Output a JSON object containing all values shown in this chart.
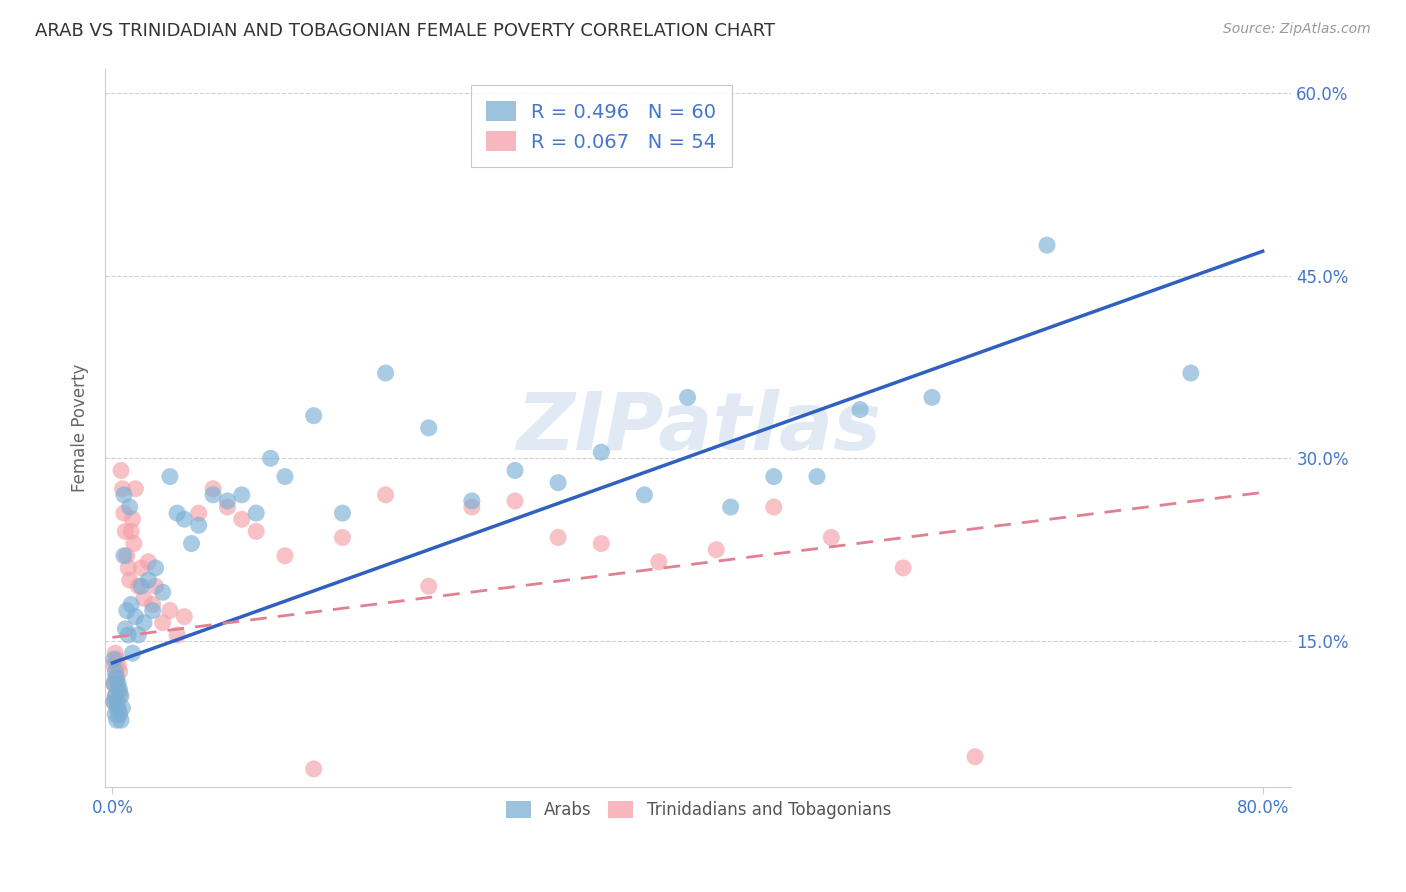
{
  "title": "ARAB VS TRINIDADIAN AND TOBAGONIAN FEMALE POVERTY CORRELATION CHART",
  "source": "Source: ZipAtlas.com",
  "ylabel": "Female Poverty",
  "watermark": "ZIPatlas",
  "legend_arab": "Arabs",
  "legend_tnt": "Trinidadians and Tobagonians",
  "arab_R": "R = 0.496",
  "arab_N": "N = 60",
  "tnt_R": "R = 0.067",
  "tnt_N": "N = 54",
  "xlim": [
    -0.005,
    0.82
  ],
  "ylim": [
    0.03,
    0.62
  ],
  "xticks": [
    0.0,
    0.8
  ],
  "xticklabels": [
    "0.0%",
    "80.0%"
  ],
  "yticks": [
    0.15,
    0.3,
    0.45,
    0.6
  ],
  "yticklabels_right": [
    "15.0%",
    "30.0%",
    "45.0%",
    "60.0%"
  ],
  "arab_color": "#7BAFD4",
  "tnt_color": "#F4A0A8",
  "arab_line_color": "#3060C0",
  "tnt_line_color": "#E08090",
  "grid_color": "#CCCCCC",
  "title_color": "#333333",
  "axis_label_color": "#4477CC",
  "background_color": "#FFFFFF",
  "arab_line_x0": 0.0,
  "arab_line_y0": 0.132,
  "arab_line_x1": 0.8,
  "arab_line_y1": 0.47,
  "tnt_line_x0": 0.0,
  "tnt_line_y0": 0.153,
  "tnt_line_x1": 0.8,
  "tnt_line_y1": 0.272,
  "arab_x": [
    0.001,
    0.001,
    0.001,
    0.002,
    0.002,
    0.002,
    0.003,
    0.003,
    0.003,
    0.004,
    0.004,
    0.005,
    0.005,
    0.006,
    0.006,
    0.007,
    0.008,
    0.008,
    0.009,
    0.01,
    0.011,
    0.012,
    0.013,
    0.014,
    0.016,
    0.018,
    0.02,
    0.022,
    0.025,
    0.028,
    0.03,
    0.035,
    0.04,
    0.045,
    0.05,
    0.055,
    0.06,
    0.07,
    0.08,
    0.09,
    0.1,
    0.11,
    0.12,
    0.14,
    0.16,
    0.19,
    0.22,
    0.25,
    0.28,
    0.31,
    0.34,
    0.37,
    0.4,
    0.43,
    0.46,
    0.49,
    0.52,
    0.57,
    0.65,
    0.75
  ],
  "arab_y": [
    0.135,
    0.115,
    0.1,
    0.125,
    0.105,
    0.09,
    0.12,
    0.1,
    0.085,
    0.115,
    0.095,
    0.11,
    0.09,
    0.105,
    0.085,
    0.095,
    0.22,
    0.27,
    0.16,
    0.175,
    0.155,
    0.26,
    0.18,
    0.14,
    0.17,
    0.155,
    0.195,
    0.165,
    0.2,
    0.175,
    0.21,
    0.19,
    0.285,
    0.255,
    0.25,
    0.23,
    0.245,
    0.27,
    0.265,
    0.27,
    0.255,
    0.3,
    0.285,
    0.335,
    0.255,
    0.37,
    0.325,
    0.265,
    0.29,
    0.28,
    0.305,
    0.27,
    0.35,
    0.26,
    0.285,
    0.285,
    0.34,
    0.35,
    0.475,
    0.37
  ],
  "tnt_x": [
    0.001,
    0.001,
    0.001,
    0.002,
    0.002,
    0.002,
    0.003,
    0.003,
    0.003,
    0.004,
    0.004,
    0.005,
    0.005,
    0.006,
    0.007,
    0.008,
    0.009,
    0.01,
    0.011,
    0.012,
    0.013,
    0.014,
    0.015,
    0.016,
    0.018,
    0.02,
    0.022,
    0.025,
    0.028,
    0.03,
    0.035,
    0.04,
    0.045,
    0.05,
    0.06,
    0.07,
    0.08,
    0.09,
    0.1,
    0.12,
    0.14,
    0.16,
    0.19,
    0.22,
    0.25,
    0.28,
    0.31,
    0.34,
    0.38,
    0.42,
    0.46,
    0.5,
    0.55,
    0.6
  ],
  "tnt_y": [
    0.13,
    0.115,
    0.1,
    0.14,
    0.12,
    0.105,
    0.135,
    0.115,
    0.095,
    0.13,
    0.11,
    0.125,
    0.105,
    0.29,
    0.275,
    0.255,
    0.24,
    0.22,
    0.21,
    0.2,
    0.24,
    0.25,
    0.23,
    0.275,
    0.195,
    0.21,
    0.185,
    0.215,
    0.18,
    0.195,
    0.165,
    0.175,
    0.155,
    0.17,
    0.255,
    0.275,
    0.26,
    0.25,
    0.24,
    0.22,
    0.045,
    0.235,
    0.27,
    0.195,
    0.26,
    0.265,
    0.235,
    0.23,
    0.215,
    0.225,
    0.26,
    0.235,
    0.21,
    0.055
  ]
}
